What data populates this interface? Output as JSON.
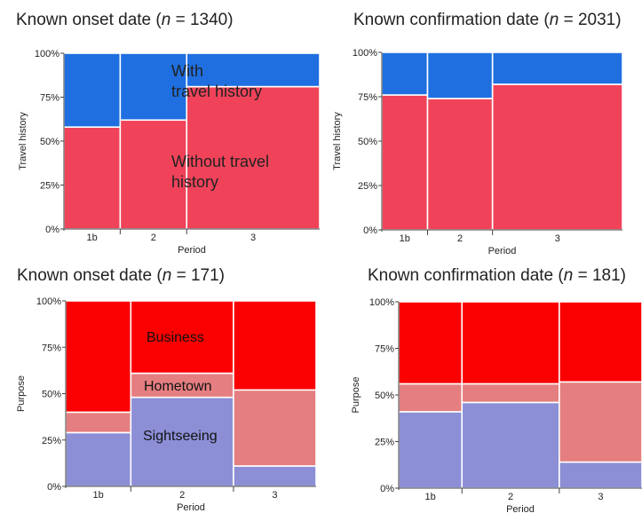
{
  "chart_data": [
    {
      "type": "mosaic",
      "title_prefix": "Known onset date (",
      "title_n_var": "n",
      "title_suffix": " = 1340)",
      "xlabel": "Period",
      "ylabel": "Travel history",
      "categories": [
        "1b",
        "2",
        "3"
      ],
      "widths": [
        0.22,
        0.26,
        0.52
      ],
      "yticks": [
        "0%",
        "25%",
        "50%",
        "75%",
        "100%"
      ],
      "ylim": [
        0,
        100
      ],
      "series": [
        {
          "name": "Without travel history",
          "color": "#f0435a",
          "values": [
            58,
            62,
            81
          ]
        },
        {
          "name": "With travel history",
          "color": "#1f6fe0",
          "values": [
            42,
            38,
            19
          ]
        }
      ],
      "annotations": [
        {
          "lines": [
            "With",
            "travel history"
          ],
          "series": "With travel history"
        },
        {
          "lines": [
            "Without travel",
            "history"
          ],
          "series": "Without travel history"
        }
      ]
    },
    {
      "type": "mosaic",
      "title_prefix": "Known confirmation date (",
      "title_n_var": "n",
      "title_suffix": " = 2031)",
      "xlabel": "Period",
      "ylabel": "Travel history",
      "categories": [
        "1b",
        "2",
        "3"
      ],
      "widths": [
        0.19,
        0.27,
        0.54
      ],
      "yticks": [
        "0%",
        "25%",
        "50%",
        "75%",
        "100%"
      ],
      "ylim": [
        0,
        100
      ],
      "series": [
        {
          "name": "Without travel history",
          "color": "#f0435a",
          "values": [
            76,
            74,
            82
          ]
        },
        {
          "name": "With travel history",
          "color": "#1f6fe0",
          "values": [
            24,
            26,
            18
          ]
        }
      ],
      "annotations": []
    },
    {
      "type": "mosaic",
      "title_prefix": "Known onset date (",
      "title_n_var": "n",
      "title_suffix": " = 171)",
      "xlabel": "Period",
      "ylabel": "Purpose",
      "categories": [
        "1b",
        "2",
        "3"
      ],
      "widths": [
        0.26,
        0.41,
        0.33
      ],
      "yticks": [
        "0%",
        "25%",
        "50%",
        "75%",
        "100%"
      ],
      "ylim": [
        0,
        100
      ],
      "series": [
        {
          "name": "Sightseeing",
          "color": "#8c8fd6",
          "values": [
            29,
            48,
            11
          ]
        },
        {
          "name": "Hometown",
          "color": "#e57e80",
          "values": [
            11,
            13,
            41
          ]
        },
        {
          "name": "Business",
          "color": "#fa0000",
          "values": [
            60,
            39,
            48
          ]
        }
      ],
      "annotations": [
        {
          "lines": [
            "Business"
          ],
          "series": "Business"
        },
        {
          "lines": [
            "Hometown"
          ],
          "series": "Hometown"
        },
        {
          "lines": [
            "Sightseeing"
          ],
          "series": "Sightseeing"
        }
      ]
    },
    {
      "type": "mosaic",
      "title_prefix": "Known confirmation date (",
      "title_n_var": "n",
      "title_suffix": " = 181)",
      "xlabel": "Period",
      "ylabel": "Purpose",
      "categories": [
        "1b",
        "2",
        "3"
      ],
      "widths": [
        0.26,
        0.4,
        0.34
      ],
      "yticks": [
        "0%",
        "25%",
        "50%",
        "75%",
        "100%"
      ],
      "ylim": [
        0,
        100
      ],
      "series": [
        {
          "name": "Sightseeing",
          "color": "#8c8fd6",
          "values": [
            41,
            46,
            14
          ]
        },
        {
          "name": "Hometown",
          "color": "#e57e80",
          "values": [
            15,
            10,
            43
          ]
        },
        {
          "name": "Business",
          "color": "#fa0000",
          "values": [
            44,
            44,
            43
          ]
        }
      ],
      "annotations": []
    }
  ]
}
